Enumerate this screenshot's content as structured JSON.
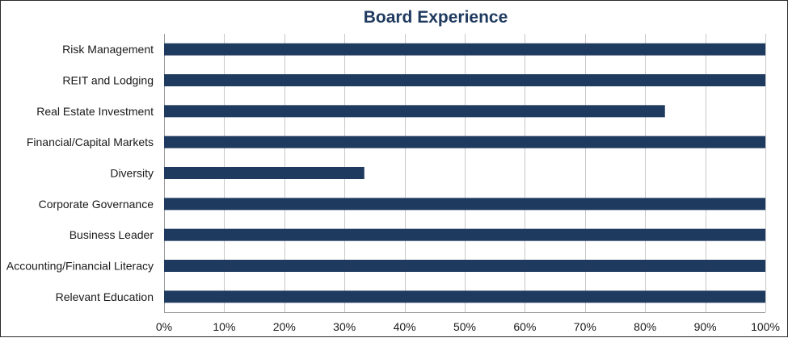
{
  "chart_data": {
    "type": "bar",
    "orientation": "horizontal",
    "title": "Board Experience",
    "categories": [
      "Risk Management",
      "REIT and Lodging",
      "Real Estate Investment",
      "Financial/Capital Markets",
      "Diversity",
      "Corporate Governance",
      "Business Leader",
      "Accounting/Financial Literacy",
      "Relevant Education"
    ],
    "values": [
      100,
      100,
      83.3,
      100,
      33.3,
      100,
      100,
      100,
      100
    ],
    "xlim": [
      0,
      100
    ],
    "x_ticks": [
      "0%",
      "10%",
      "20%",
      "30%",
      "40%",
      "50%",
      "60%",
      "70%",
      "80%",
      "90%",
      "100%"
    ],
    "grid": "vertical",
    "legend": "none",
    "colors": {
      "bar": "#1f3a5f",
      "title": "#1f3a5f"
    }
  }
}
